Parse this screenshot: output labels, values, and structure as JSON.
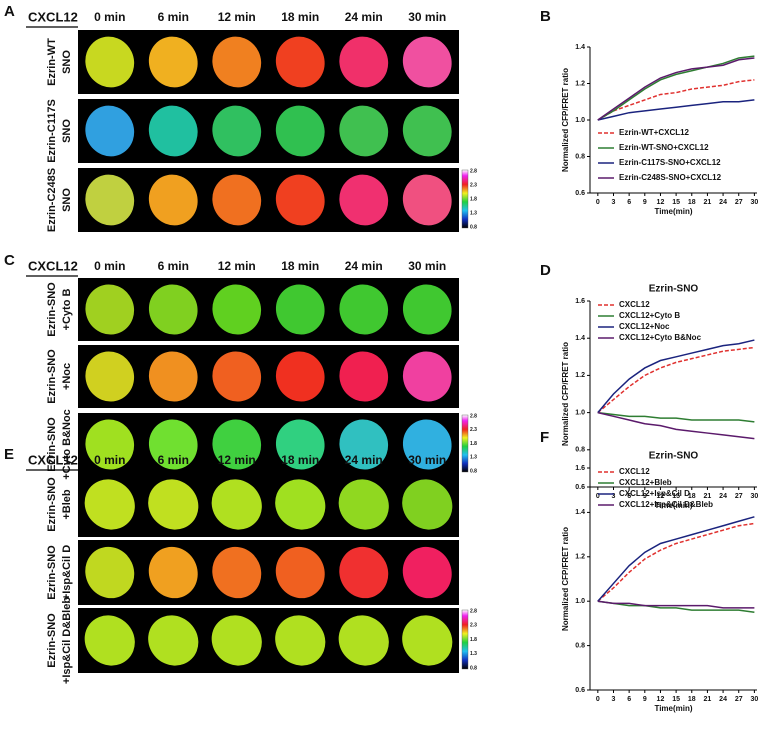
{
  "panels": [
    {
      "letter": "A",
      "stimulus": "CXCL12",
      "times": [
        "0 min",
        "6 min",
        "12 min",
        "18 min",
        "24 min",
        "30 min"
      ],
      "rows": [
        {
          "label": [
            "Ezrin-WT",
            "SNO"
          ]
        },
        {
          "label": [
            "Ezrin-C117S",
            "SNO"
          ]
        },
        {
          "label": [
            "Ezrin-C248S",
            "SNO"
          ]
        }
      ],
      "colorbar": [
        "2.8",
        "2.3",
        "1.8",
        "1.3",
        "0.8"
      ]
    },
    {
      "letter": "C",
      "stimulus": "CXCL12",
      "times": [
        "0 min",
        "6 min",
        "12 min",
        "18 min",
        "24 min",
        "30 min"
      ],
      "rows": [
        {
          "label": [
            "Ezrin-SNO",
            "+Cyto B"
          ]
        },
        {
          "label": [
            "Ezrin-SNO",
            "+Noc"
          ]
        },
        {
          "label": [
            "Ezrin-SNO",
            "+Cyto B&Noc"
          ]
        }
      ],
      "colorbar": [
        "2.8",
        "2.3",
        "1.8",
        "1.3",
        "0.8"
      ]
    },
    {
      "letter": "E",
      "stimulus": "CXCL12",
      "times": [
        "0 min",
        "6 min",
        "12 min",
        "18 min",
        "24 min",
        "30 min"
      ],
      "rows": [
        {
          "label": [
            "Ezrin-SNO",
            "+Bleb"
          ]
        },
        {
          "label": [
            "Ezrin-SNO",
            "+Isp&Cil D"
          ]
        },
        {
          "label": [
            "Ezrin-SNO",
            "+Isp&Cil D&Bleb"
          ]
        }
      ],
      "colorbar": [
        "2.8",
        "2.3",
        "1.8",
        "1.3",
        "0.8"
      ]
    }
  ],
  "chart_data": [
    {
      "type": "line",
      "letter": "B",
      "ylabel": "Normalized CFP/FRET ratio",
      "xlabel": "Time(min)",
      "x": [
        0,
        3,
        6,
        9,
        12,
        15,
        18,
        21,
        24,
        27,
        30
      ],
      "xlim": [
        -1.5,
        30.5
      ],
      "xticks": [
        0,
        3,
        6,
        9,
        12,
        15,
        18,
        21,
        24,
        27,
        30
      ],
      "ylim": [
        0.6,
        1.4
      ],
      "yticks": [
        0.6,
        0.8,
        {
          "value": 1,
          "label": "1.0"
        },
        1.2,
        1.4
      ],
      "legend": "lower-left",
      "series": [
        {
          "name": "Ezrin-WT+CXCL12",
          "color": "#e0312f",
          "dashed": true,
          "values": [
            1.0,
            1.05,
            1.08,
            1.11,
            1.14,
            1.15,
            1.17,
            1.18,
            1.19,
            1.21,
            1.22
          ]
        },
        {
          "name": "Ezrin-WT-SNO+CXCL12",
          "color": "#2e7d32",
          "values": [
            1.0,
            1.05,
            1.11,
            1.17,
            1.22,
            1.25,
            1.27,
            1.29,
            1.31,
            1.34,
            1.35
          ]
        },
        {
          "name": "Ezrin-C117S-SNO+CXCL12",
          "color": "#1a237e",
          "values": [
            1.0,
            1.02,
            1.04,
            1.05,
            1.06,
            1.07,
            1.08,
            1.09,
            1.1,
            1.1,
            1.11
          ]
        },
        {
          "name": "Ezrin-C248S-SNO+CXCL12",
          "color": "#5b1a6b",
          "values": [
            1.0,
            1.06,
            1.12,
            1.18,
            1.23,
            1.26,
            1.28,
            1.29,
            1.3,
            1.33,
            1.34
          ]
        }
      ]
    },
    {
      "type": "line",
      "letter": "D",
      "title": "Ezrin-SNO",
      "ylabel": "Normalized CFP/FRET ratio",
      "xlabel": "Time(min)",
      "x": [
        0,
        3,
        6,
        9,
        12,
        15,
        18,
        21,
        24,
        27,
        30
      ],
      "xlim": [
        -1.5,
        30.5
      ],
      "xticks": [
        0,
        3,
        6,
        9,
        12,
        15,
        18,
        21,
        24,
        27,
        30
      ],
      "ylim": [
        0.6,
        1.6
      ],
      "yticks": [
        0.6,
        0.8,
        {
          "value": 1,
          "label": "1.0"
        },
        1.2,
        1.4,
        1.6
      ],
      "legend": "upper-left",
      "series": [
        {
          "name": "CXCL12",
          "color": "#e0312f",
          "dashed": true,
          "values": [
            1.0,
            1.07,
            1.14,
            1.2,
            1.24,
            1.27,
            1.29,
            1.31,
            1.33,
            1.34,
            1.35
          ]
        },
        {
          "name": "CXCL12+Cyto B",
          "color": "#2e7d32",
          "values": [
            1.0,
            0.99,
            0.98,
            0.98,
            0.97,
            0.97,
            0.96,
            0.96,
            0.96,
            0.96,
            0.95
          ]
        },
        {
          "name": "CXCL12+Noc",
          "color": "#1a237e",
          "values": [
            1.0,
            1.1,
            1.18,
            1.24,
            1.28,
            1.3,
            1.32,
            1.34,
            1.36,
            1.37,
            1.39
          ]
        },
        {
          "name": "CXCL12+Cyto B&Noc",
          "color": "#5b1a6b",
          "values": [
            1.0,
            0.98,
            0.96,
            0.94,
            0.93,
            0.91,
            0.9,
            0.89,
            0.88,
            0.87,
            0.86
          ]
        }
      ]
    },
    {
      "type": "line",
      "letter": "F",
      "title": "Ezrin-SNO",
      "ylabel": "Normalized CFP/FRET ratio",
      "xlabel": "Time(min)",
      "x": [
        0,
        3,
        6,
        9,
        12,
        15,
        18,
        21,
        24,
        27,
        30
      ],
      "xlim": [
        -1.5,
        30.5
      ],
      "xticks": [
        0,
        3,
        6,
        9,
        12,
        15,
        18,
        21,
        24,
        27,
        30
      ],
      "ylim": [
        0.6,
        1.6
      ],
      "yticks": [
        0.6,
        0.8,
        {
          "value": 1,
          "label": "1.0"
        },
        1.2,
        1.4,
        1.6
      ],
      "legend": "upper-left",
      "series": [
        {
          "name": "CXCL12",
          "color": "#e0312f",
          "dashed": true,
          "values": [
            1.0,
            1.06,
            1.13,
            1.19,
            1.23,
            1.26,
            1.28,
            1.3,
            1.32,
            1.34,
            1.35
          ]
        },
        {
          "name": "CXCL12+Bleb",
          "color": "#2e7d32",
          "values": [
            1.0,
            0.99,
            0.98,
            0.98,
            0.97,
            0.97,
            0.96,
            0.96,
            0.96,
            0.96,
            0.95
          ]
        },
        {
          "name": "CXCL12+Isp&Cil D",
          "color": "#1a237e",
          "values": [
            1.0,
            1.08,
            1.16,
            1.22,
            1.26,
            1.28,
            1.3,
            1.32,
            1.34,
            1.36,
            1.38
          ]
        },
        {
          "name": "CXCL12+Isp&Cil D&Bleb",
          "color": "#5b1a6b",
          "values": [
            1.0,
            0.99,
            0.99,
            0.98,
            0.98,
            0.98,
            0.98,
            0.98,
            0.97,
            0.97,
            0.97
          ]
        }
      ]
    }
  ]
}
